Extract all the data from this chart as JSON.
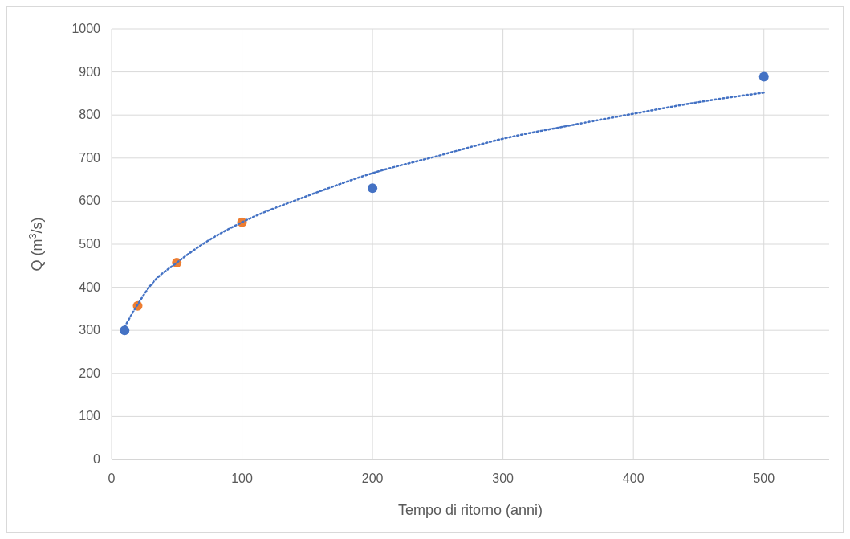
{
  "chart_data": {
    "type": "scatter",
    "xlabel": "Tempo di ritorno (anni)",
    "ylabel": "Q (m$^{3}$/s)",
    "xlim": [
      0,
      550
    ],
    "xticks": [
      0,
      100,
      200,
      300,
      400,
      500
    ],
    "ylim": [
      0,
      1000
    ],
    "yticks": [
      0,
      100,
      200,
      300,
      400,
      500,
      600,
      700,
      800,
      900,
      1000
    ],
    "grid": true,
    "marker": "circle",
    "series": [
      {
        "type": "scatter",
        "color": "#4472c4",
        "x": [
          10,
          200,
          500
        ],
        "values": [
          300,
          630,
          889
        ]
      },
      {
        "type": "scatter",
        "color": "#ed7d31",
        "x": [
          20,
          50,
          100
        ],
        "values": [
          357,
          457,
          551
        ]
      },
      {
        "type": "line",
        "color": "#4472c4",
        "marker": "none",
        "line_style": "dotted",
        "x": [
          10,
          20,
          30,
          50,
          75,
          100,
          150,
          200,
          250,
          300,
          350,
          400,
          450,
          500
        ],
        "values": [
          308,
          360,
          405,
          457,
          510,
          551,
          612,
          665,
          705,
          745,
          775,
          803,
          830,
          852
        ]
      }
    ]
  }
}
